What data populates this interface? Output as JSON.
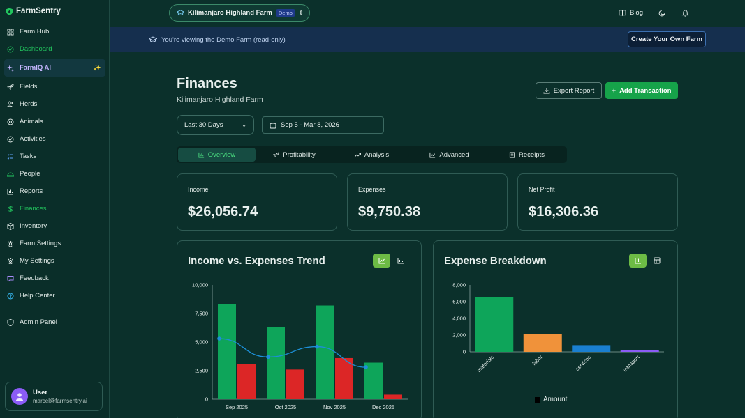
{
  "app": {
    "name": "FarmSentry"
  },
  "sidebar": {
    "items": [
      {
        "label": "Farm Hub",
        "icon": "grid-icon"
      },
      {
        "label": "Dashboard",
        "icon": "check-circle-icon"
      },
      {
        "label": "FarmIQ AI",
        "icon": "sparkles-icon"
      },
      {
        "label": "Fields",
        "icon": "sprout-icon"
      },
      {
        "label": "Herds",
        "icon": "users-icon"
      },
      {
        "label": "Animals",
        "icon": "paw-icon"
      },
      {
        "label": "Activities",
        "icon": "activity-icon"
      },
      {
        "label": "Tasks",
        "icon": "list-icon"
      },
      {
        "label": "People",
        "icon": "people-icon"
      },
      {
        "label": "Reports",
        "icon": "bar-chart-icon"
      },
      {
        "label": "Finances",
        "icon": "dollar-icon"
      },
      {
        "label": "Inventory",
        "icon": "box-icon"
      },
      {
        "label": "Farm Settings",
        "icon": "gear-icon"
      },
      {
        "label": "My Settings",
        "icon": "gear-icon"
      },
      {
        "label": "Feedback",
        "icon": "message-icon"
      },
      {
        "label": "Help Center",
        "icon": "help-icon"
      }
    ],
    "admin": "Admin Panel",
    "ai_spark": "✨",
    "user": {
      "name": "User",
      "email": "marcel@farmsentry.ai"
    }
  },
  "topbar": {
    "farm_name": "Kilimanjaro Highland Farm",
    "badge": "Demo",
    "blog": "Blog"
  },
  "banner": {
    "text": "You're viewing the Demo Farm (read-only)",
    "button": "Create Your Own Farm"
  },
  "page": {
    "title": "Finances",
    "subtitle": "Kilimanjaro Highland Farm",
    "export_label": "Export Report",
    "add_label": "Add Transaction",
    "range": "Last 30 Days",
    "dates": "Sep 5 - Mar 8, 2026",
    "tabs": [
      "Overview",
      "Profitability",
      "Analysis",
      "Advanced",
      "Receipts"
    ]
  },
  "stats": [
    {
      "label": "Income",
      "value": "$26,056.74"
    },
    {
      "label": "Expenses",
      "value": "$9,750.38"
    },
    {
      "label": "Net Profit",
      "value": "$16,306.36"
    }
  ],
  "colors": {
    "income": "#0ea55a",
    "expense": "#dc2626",
    "net": "#1d8fd8",
    "accent": "#16a34a"
  },
  "chart_data": [
    {
      "type": "bar",
      "title": "Income vs. Expenses Trend",
      "categories": [
        "Sep 2025",
        "Oct 2025",
        "Nov 2025",
        "Dec 2025"
      ],
      "series": [
        {
          "values": [
            8300,
            6300,
            8200,
            3200
          ],
          "color": "#0ea55a"
        },
        {
          "values": [
            3100,
            2600,
            3600,
            400
          ],
          "color": "#dc2626"
        },
        {
          "values": [
            5300,
            3700,
            4600,
            2800
          ],
          "color": "#1d8fd8",
          "kind": "line"
        }
      ],
      "ylim": [
        0,
        10000
      ],
      "yticks": [
        "0",
        "2,500",
        "5,000",
        "7,500",
        "10,000"
      ],
      "grid": false
    },
    {
      "type": "bar",
      "title": "Expense Breakdown",
      "categories": [
        "materials",
        "labor",
        "services",
        "transport"
      ],
      "values": [
        6500,
        2100,
        800,
        200
      ],
      "colors": [
        "#0ea55a",
        "#f0923a",
        "#1a7fd0",
        "#8b5cf6"
      ],
      "ylim": [
        0,
        8000
      ],
      "yticks": [
        "0",
        "2,000",
        "4,000",
        "6,000",
        "8,000"
      ],
      "legend": "Amount",
      "grid": false
    }
  ]
}
